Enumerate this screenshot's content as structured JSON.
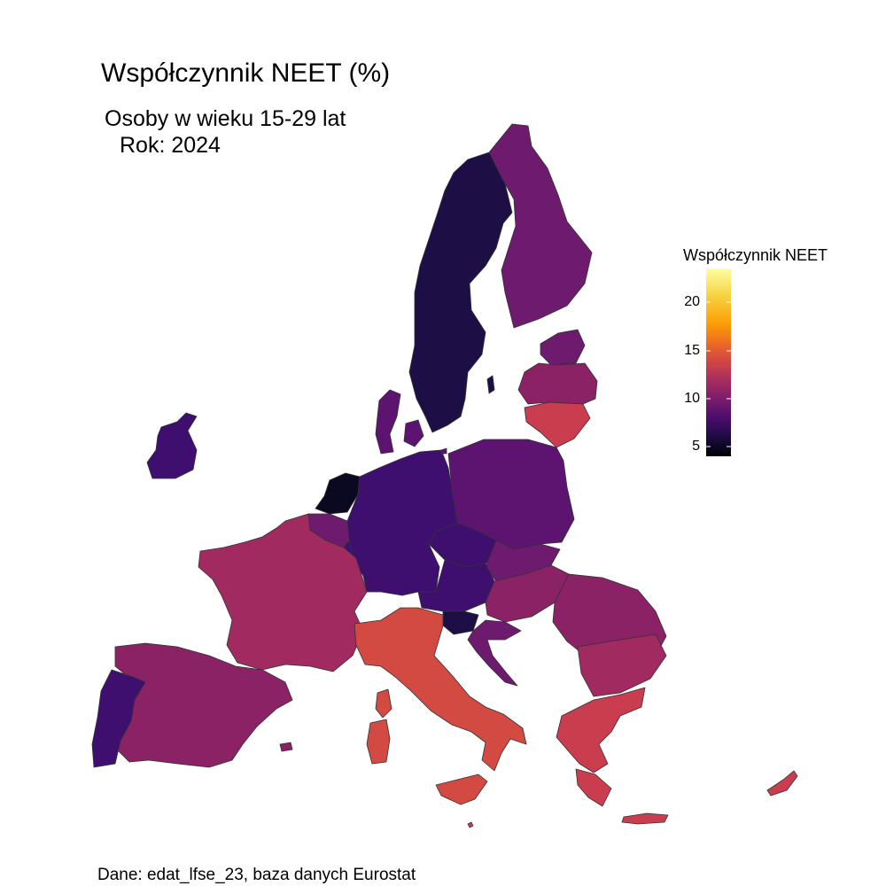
{
  "title": "Współczynnik NEET (%)",
  "subtitle": {
    "line1": "Osoby w wieku 15-29 lat",
    "line2": "Rok: 2024"
  },
  "caption": "Dane: edat_lfse_23, baza danych Eurostat",
  "legend": {
    "title": "Współczynnik NEET",
    "ticks": [
      "20",
      "15",
      "10",
      "5"
    ],
    "range": [
      4,
      23
    ],
    "palette": "inferno"
  },
  "colors": {
    "c_dark": "#0b0922",
    "c_deep": "#1d0f46",
    "c_purple": "#3f0f6f",
    "c_mid": "#5c1470",
    "c_plum": "#6e1a6e",
    "c_magenta": "#8b2266",
    "c_rose": "#a12a60",
    "c_red": "#c93d4e",
    "c_orange": "#d24a42",
    "border": "#333333"
  }
}
